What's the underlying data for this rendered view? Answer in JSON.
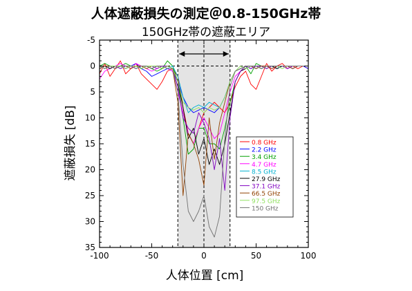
{
  "chart_data": {
    "type": "line",
    "title": "人体遮蔽損失の測定＠0.8-150GHz帯",
    "subtitle": "150GHz帯の遮蔽エリア",
    "xlabel": "人体位置 [cm]",
    "ylabel": "遮蔽損失 [dB]",
    "xlim": [
      -100,
      100
    ],
    "ylim": [
      -5,
      35
    ],
    "y_inverted": true,
    "xticks": [
      -100,
      -50,
      0,
      50,
      100
    ],
    "yticks": [
      -5,
      0,
      5,
      10,
      15,
      20,
      25,
      30,
      35
    ],
    "grid": false,
    "legend_position": "right-center",
    "shaded_region": {
      "x": [
        -25,
        25
      ],
      "label": "150GHz帯の遮蔽エリア"
    },
    "reference_lines": {
      "vertical_x": 0,
      "horizontal_y": 0
    },
    "x": [
      -100,
      -95,
      -90,
      -85,
      -80,
      -75,
      -70,
      -65,
      -60,
      -55,
      -50,
      -45,
      -40,
      -35,
      -30,
      -25,
      -20,
      -15,
      -10,
      -5,
      0,
      5,
      10,
      15,
      20,
      25,
      30,
      35,
      40,
      45,
      50,
      55,
      60,
      65,
      70,
      75,
      80,
      85,
      90,
      95,
      100
    ],
    "series": [
      {
        "name": "0.8 GHz",
        "color": "#ff0000",
        "values": [
          1.5,
          -0.5,
          2.0,
          0.5,
          -1.0,
          1.5,
          0.5,
          -0.5,
          1.5,
          2.5,
          3.5,
          4.5,
          3.0,
          1.0,
          0.5,
          2.0,
          8.0,
          13.0,
          15.0,
          12.0,
          9.0,
          8.0,
          7.0,
          8.0,
          9.0,
          7.0,
          4.0,
          2.0,
          1.0,
          3.5,
          4.5,
          2.0,
          -0.5,
          1.0,
          0.0,
          -0.5,
          0.5,
          0.0,
          0.5,
          0.0,
          0.5
        ]
      },
      {
        "name": "2.2 GHz",
        "color": "#0000ff",
        "values": [
          0.5,
          0.0,
          0.5,
          0.0,
          0.0,
          0.5,
          0.0,
          -0.5,
          0.5,
          1.0,
          2.0,
          1.5,
          1.0,
          0.5,
          1.0,
          3.0,
          6.0,
          8.0,
          9.0,
          8.5,
          8.0,
          8.5,
          9.0,
          8.0,
          6.0,
          3.0,
          1.0,
          0.5,
          0.0,
          0.5,
          0.0,
          0.5,
          0.0,
          0.0,
          0.5,
          0.0,
          0.0,
          0.5,
          0.0,
          0.0,
          0.5
        ]
      },
      {
        "name": "3.4 GHz",
        "color": "#00a000",
        "values": [
          0.0,
          -0.5,
          0.0,
          0.5,
          0.0,
          -0.5,
          0.0,
          0.0,
          0.5,
          0.0,
          0.5,
          1.0,
          0.5,
          -1.0,
          0.0,
          3.0,
          10.0,
          17.0,
          16.0,
          12.0,
          12.0,
          15.0,
          15.0,
          16.0,
          12.0,
          7.0,
          3.0,
          1.0,
          0.0,
          1.5,
          -0.5,
          0.0,
          0.5,
          0.0,
          0.0,
          0.0,
          0.0,
          0.0,
          0.0,
          0.0,
          0.0
        ]
      },
      {
        "name": "4.7 GHz",
        "color": "#ff00ff",
        "values": [
          2.5,
          1.0,
          0.5,
          0.0,
          -0.5,
          0.0,
          0.5,
          -0.5,
          0.0,
          0.5,
          1.0,
          0.5,
          0.0,
          0.5,
          1.0,
          5.0,
          9.0,
          13.0,
          15.0,
          12.0,
          10.0,
          12.0,
          14.0,
          13.0,
          9.0,
          5.0,
          2.0,
          1.0,
          0.5,
          0.0,
          0.5,
          0.0,
          0.0,
          0.5,
          0.0,
          0.0,
          0.5,
          0.0,
          0.0,
          0.0,
          0.0
        ]
      },
      {
        "name": "8.5 GHz",
        "color": "#00b0d0",
        "values": [
          0.0,
          0.5,
          0.0,
          0.0,
          0.5,
          0.0,
          0.0,
          0.5,
          0.0,
          0.0,
          0.5,
          0.0,
          0.0,
          0.5,
          0.0,
          2.0,
          6.0,
          9.0,
          8.0,
          7.5,
          8.0,
          7.0,
          7.5,
          8.0,
          6.0,
          3.0,
          1.0,
          0.5,
          0.0,
          0.0,
          0.5,
          0.0,
          0.0,
          0.0,
          0.5,
          0.0,
          0.0,
          0.0,
          0.0,
          0.0,
          0.0
        ]
      },
      {
        "name": "27.9 GHz",
        "color": "#000000",
        "values": [
          0.5,
          0.0,
          0.5,
          0.0,
          0.0,
          0.5,
          0.0,
          0.0,
          0.5,
          0.0,
          0.5,
          0.0,
          0.5,
          0.0,
          0.5,
          3.0,
          8.0,
          14.0,
          12.0,
          17.0,
          14.0,
          19.0,
          16.0,
          19.0,
          15.0,
          9.0,
          3.0,
          1.0,
          0.5,
          0.0,
          0.0,
          0.5,
          0.0,
          0.0,
          0.5,
          0.0,
          0.0,
          0.0,
          0.0,
          0.0,
          0.0
        ]
      },
      {
        "name": "37.1 GHz",
        "color": "#8000c0",
        "values": [
          0.0,
          0.5,
          0.0,
          0.0,
          0.5,
          0.0,
          0.0,
          0.5,
          0.0,
          0.0,
          0.0,
          0.5,
          0.0,
          0.0,
          0.5,
          4.0,
          10.0,
          12.0,
          13.0,
          9.0,
          11.0,
          14.0,
          20.0,
          14.0,
          24.0,
          10.0,
          3.0,
          1.0,
          0.0,
          0.5,
          0.0,
          0.0,
          0.5,
          0.0,
          0.0,
          0.0,
          0.5,
          0.0,
          0.0,
          0.0,
          0.0
        ]
      },
      {
        "name": "66.5 GHz",
        "color": "#904000",
        "values": [
          0.5,
          0.0,
          0.0,
          0.5,
          0.0,
          0.0,
          0.5,
          0.0,
          0.0,
          0.5,
          0.0,
          0.0,
          0.5,
          0.0,
          0.5,
          7.0,
          25.0,
          13.0,
          15.0,
          18.0,
          23.0,
          10.0,
          18.0,
          11.0,
          7.0,
          3.0,
          1.0,
          0.5,
          0.0,
          0.0,
          0.5,
          0.0,
          0.0,
          0.5,
          0.0,
          0.0,
          0.0,
          0.5,
          0.0,
          0.0,
          0.0
        ]
      },
      {
        "name": "97.5 GHz",
        "color": "#90e060",
        "values": [
          0.0,
          0.5,
          0.0,
          0.0,
          0.0,
          0.5,
          0.0,
          0.0,
          0.5,
          0.0,
          0.0,
          0.0,
          0.5,
          0.0,
          0.5,
          3.0,
          7.0,
          8.0,
          8.5,
          8.0,
          9.0,
          8.0,
          8.5,
          8.0,
          6.0,
          3.0,
          1.0,
          0.0,
          0.5,
          0.0,
          0.0,
          0.5,
          0.0,
          0.0,
          0.0,
          0.5,
          0.0,
          0.0,
          0.0,
          0.0,
          0.0
        ]
      },
      {
        "name": "150 GHz",
        "color": "#707070",
        "values": [
          0.0,
          0.5,
          0.0,
          0.5,
          0.0,
          0.0,
          0.0,
          0.5,
          0.0,
          0.0,
          0.5,
          0.0,
          0.0,
          0.5,
          0.5,
          5.0,
          19.0,
          28.0,
          30.0,
          28.0,
          25.0,
          31.0,
          33.0,
          29.0,
          14.0,
          4.0,
          1.0,
          0.5,
          0.0,
          0.0,
          0.0,
          0.5,
          0.0,
          0.0,
          0.0,
          0.0,
          0.0,
          0.0,
          0.0,
          0.0,
          0.0
        ]
      }
    ]
  }
}
